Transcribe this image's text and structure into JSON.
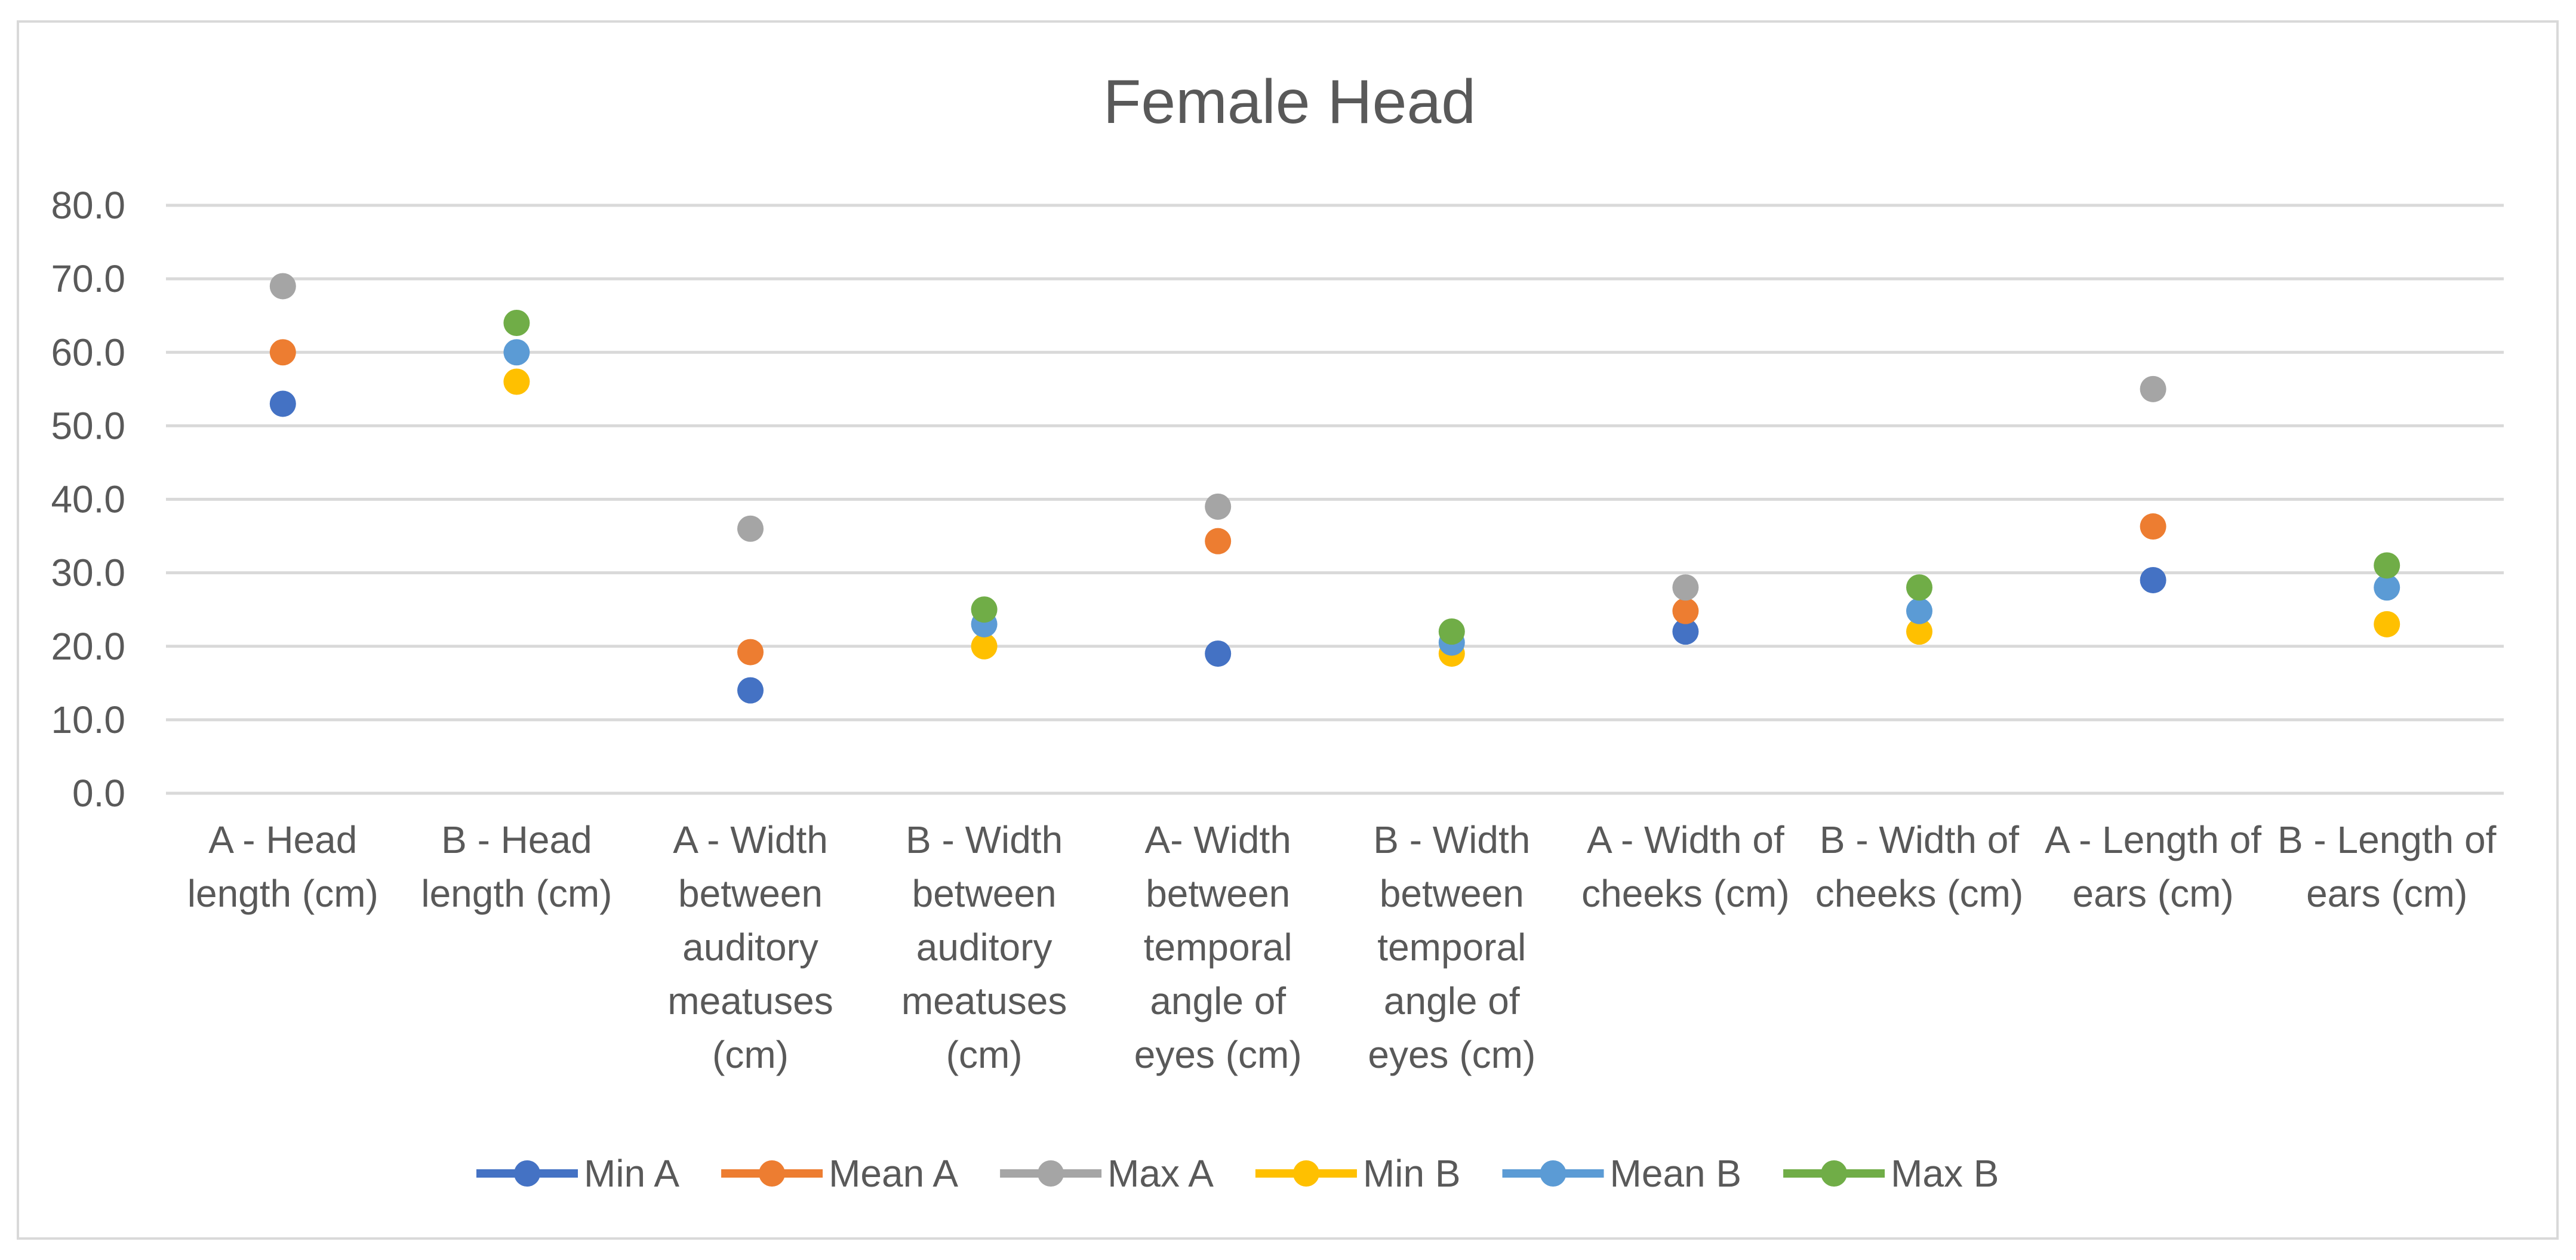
{
  "chart_data": {
    "type": "scatter",
    "title": "Female Head",
    "xlabel": "",
    "ylabel": "",
    "ylim": [
      0,
      80
    ],
    "yticks": [
      "0.0",
      "10.0",
      "20.0",
      "30.0",
      "40.0",
      "50.0",
      "60.0",
      "70.0",
      "80.0"
    ],
    "grid": true,
    "legend_position": "bottom",
    "categories": [
      [
        "A - Head",
        "length (cm)"
      ],
      [
        "B - Head",
        "length (cm)"
      ],
      [
        "A - Width",
        "between",
        "auditory",
        "meatuses",
        "(cm)"
      ],
      [
        "B - Width",
        "between",
        "auditory",
        "meatuses",
        "(cm)"
      ],
      [
        "A- Width",
        "between",
        "temporal",
        "angle of",
        "eyes (cm)"
      ],
      [
        "B - Width",
        "between",
        "temporal",
        "angle of",
        "eyes (cm)"
      ],
      [
        "A - Width of",
        "cheeks (cm)"
      ],
      [
        "B - Width of",
        "cheeks (cm)"
      ],
      [
        "A - Length of",
        "ears (cm)"
      ],
      [
        "B - Length of",
        "ears (cm)"
      ]
    ],
    "series": [
      {
        "name": "Min A",
        "color": "#4472c4",
        "values": [
          53,
          null,
          14,
          null,
          19,
          null,
          22,
          null,
          29,
          null
        ]
      },
      {
        "name": "Mean A",
        "color": "#ed7d31",
        "values": [
          60,
          null,
          19.2,
          null,
          34.3,
          null,
          24.8,
          null,
          36.3,
          null
        ]
      },
      {
        "name": "Max A",
        "color": "#a5a5a5",
        "values": [
          69,
          null,
          36,
          null,
          39,
          null,
          28,
          null,
          55,
          null
        ]
      },
      {
        "name": "Min B",
        "color": "#ffc000",
        "values": [
          null,
          56,
          null,
          20,
          null,
          19,
          null,
          22,
          null,
          23
        ]
      },
      {
        "name": "Mean B",
        "color": "#5b9bd5",
        "values": [
          null,
          60,
          null,
          23,
          null,
          20.5,
          null,
          24.8,
          null,
          28
        ]
      },
      {
        "name": "Max B",
        "color": "#70ad47",
        "values": [
          null,
          64,
          null,
          25,
          null,
          22,
          null,
          28,
          null,
          31
        ]
      }
    ]
  }
}
